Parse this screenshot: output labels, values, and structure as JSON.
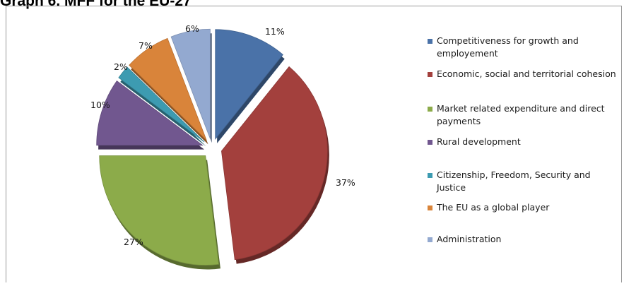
{
  "page_title": "Graph 6. MFF for the EU-27",
  "chart_data": {
    "type": "pie",
    "exploded": true,
    "style": "3d",
    "legend_position": "right",
    "slices": [
      {
        "label": "Competitiveness for growth and employement",
        "value": 11,
        "value_label": "11%",
        "color": "#4a72a8"
      },
      {
        "label": "Economic, social and territorial cohesion",
        "value": 37,
        "value_label": "37%",
        "color": "#a3403d"
      },
      {
        "label": "Market related expenditure and direct payments",
        "value": 27,
        "value_label": "27%",
        "color": "#8cab4a"
      },
      {
        "label": "Rural development",
        "value": 10,
        "value_label": "10%",
        "color": "#71578f"
      },
      {
        "label": "Citizenship, Freedom, Security and Justice",
        "value": 2,
        "value_label": "2%",
        "color": "#3d9bb1"
      },
      {
        "label": "The EU as a global player",
        "value": 7,
        "value_label": "7%",
        "color": "#d9843a"
      },
      {
        "label": "Administration",
        "value": 6,
        "value_label": "6%",
        "color": "#93a9d0"
      }
    ]
  }
}
